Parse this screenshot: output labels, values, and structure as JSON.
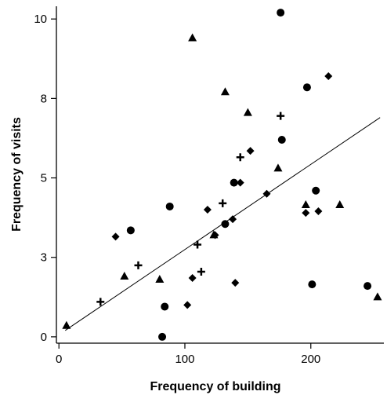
{
  "chart_data": {
    "type": "scatter",
    "title": "",
    "xlabel": "Frequency of building",
    "ylabel": "Frequency of visits",
    "xlim": [
      -2,
      258
    ],
    "ylim": [
      -0.2,
      10.4
    ],
    "xticks": [
      0,
      100,
      200
    ],
    "xtick_labels": [
      "0",
      "100",
      "200"
    ],
    "yticks": [
      0,
      2.5,
      5,
      7.5,
      10
    ],
    "ytick_labels": [
      "0",
      "3",
      "5",
      "8",
      "10"
    ],
    "grid": false,
    "legend": "none",
    "marker_color": "#000000",
    "series": [
      {
        "marker": "circle",
        "points": [
          {
            "x": 82,
            "y": 0.0
          },
          {
            "x": 84,
            "y": 0.95
          },
          {
            "x": 88,
            "y": 4.1
          },
          {
            "x": 57,
            "y": 3.35
          },
          {
            "x": 132,
            "y": 3.55
          },
          {
            "x": 139,
            "y": 4.85
          },
          {
            "x": 176,
            "y": 10.2
          },
          {
            "x": 177,
            "y": 6.2
          },
          {
            "x": 197,
            "y": 7.85
          },
          {
            "x": 204,
            "y": 4.6
          },
          {
            "x": 201,
            "y": 1.65
          },
          {
            "x": 245,
            "y": 1.6
          }
        ]
      },
      {
        "marker": "triangle",
        "points": [
          {
            "x": 6,
            "y": 0.35
          },
          {
            "x": 52,
            "y": 1.9
          },
          {
            "x": 80,
            "y": 1.8
          },
          {
            "x": 106,
            "y": 9.4
          },
          {
            "x": 123,
            "y": 3.2
          },
          {
            "x": 132,
            "y": 7.7
          },
          {
            "x": 150,
            "y": 7.05
          },
          {
            "x": 174,
            "y": 5.3
          },
          {
            "x": 196,
            "y": 4.15
          },
          {
            "x": 223,
            "y": 4.15
          },
          {
            "x": 253,
            "y": 1.25
          }
        ]
      },
      {
        "marker": "diamond",
        "points": [
          {
            "x": 45,
            "y": 3.15
          },
          {
            "x": 102,
            "y": 1.0
          },
          {
            "x": 106,
            "y": 1.85
          },
          {
            "x": 118,
            "y": 4.0
          },
          {
            "x": 124,
            "y": 3.2
          },
          {
            "x": 138,
            "y": 3.7
          },
          {
            "x": 140,
            "y": 1.7
          },
          {
            "x": 144,
            "y": 4.85
          },
          {
            "x": 152,
            "y": 5.85
          },
          {
            "x": 165,
            "y": 4.5
          },
          {
            "x": 196,
            "y": 3.9
          },
          {
            "x": 206,
            "y": 3.95
          },
          {
            "x": 214,
            "y": 8.2
          }
        ]
      },
      {
        "marker": "plus",
        "points": [
          {
            "x": 33,
            "y": 1.1
          },
          {
            "x": 63,
            "y": 2.25
          },
          {
            "x": 110,
            "y": 2.9
          },
          {
            "x": 113,
            "y": 2.05
          },
          {
            "x": 130,
            "y": 4.2
          },
          {
            "x": 144,
            "y": 5.65
          },
          {
            "x": 176,
            "y": 6.95
          }
        ]
      }
    ],
    "fit_line": {
      "x": [
        5,
        255
      ],
      "y": [
        0.2,
        6.9
      ]
    }
  }
}
